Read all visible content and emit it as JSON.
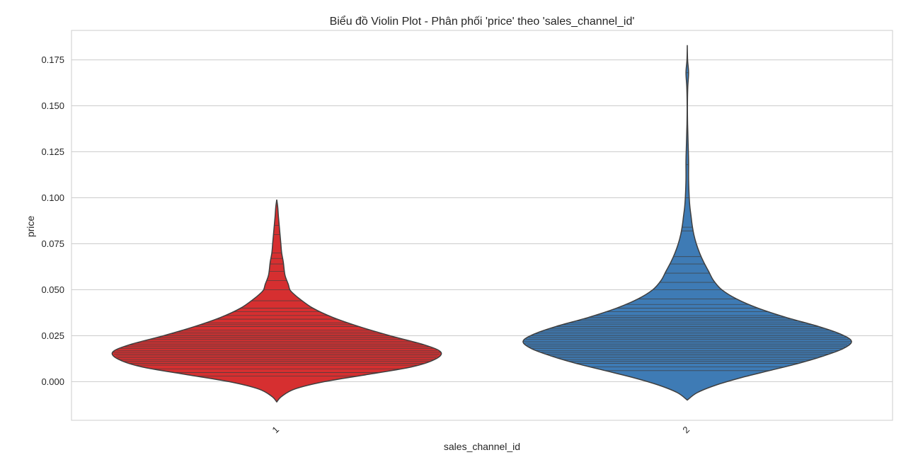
{
  "chart_data": {
    "type": "violin",
    "title": "Biểu đồ Violin Plot - Phân phối 'price' theo 'sales_channel_id'",
    "xlabel": "sales_channel_id",
    "ylabel": "price",
    "categories": [
      "1",
      "2"
    ],
    "ylim": [
      -0.021,
      0.191
    ],
    "yticks": [
      "0.000",
      "0.025",
      "0.050",
      "0.075",
      "0.100",
      "0.125",
      "0.150",
      "0.175"
    ],
    "grid": true,
    "inner": "stick",
    "violins": [
      {
        "category": "1",
        "color": "#d62f30",
        "range": [
          -0.011,
          0.099
        ],
        "density": [
          [
            -0.011,
            0.0
          ],
          [
            -0.008,
            0.03
          ],
          [
            -0.004,
            0.11
          ],
          [
            0.0,
            0.29
          ],
          [
            0.004,
            0.56
          ],
          [
            0.008,
            0.82
          ],
          [
            0.012,
            0.96
          ],
          [
            0.016,
            1.0
          ],
          [
            0.02,
            0.9
          ],
          [
            0.025,
            0.69
          ],
          [
            0.03,
            0.5
          ],
          [
            0.035,
            0.34
          ],
          [
            0.04,
            0.22
          ],
          [
            0.045,
            0.14
          ],
          [
            0.048,
            0.1
          ],
          [
            0.05,
            0.08
          ],
          [
            0.053,
            0.07
          ],
          [
            0.058,
            0.05
          ],
          [
            0.065,
            0.04
          ],
          [
            0.07,
            0.03
          ],
          [
            0.075,
            0.025
          ],
          [
            0.08,
            0.02
          ],
          [
            0.085,
            0.015
          ],
          [
            0.09,
            0.01
          ],
          [
            0.095,
            0.006
          ],
          [
            0.099,
            0.0
          ]
        ],
        "sticks": [
          0.003,
          0.005,
          0.007,
          0.009,
          0.01,
          0.011,
          0.012,
          0.013,
          0.014,
          0.015,
          0.016,
          0.017,
          0.018,
          0.019,
          0.02,
          0.021,
          0.022,
          0.023,
          0.024,
          0.025,
          0.026,
          0.027,
          0.028,
          0.03,
          0.031,
          0.032,
          0.034,
          0.036,
          0.038,
          0.04,
          0.044,
          0.05,
          0.055,
          0.06,
          0.064,
          0.067,
          0.07,
          0.08,
          0.085
        ]
      },
      {
        "category": "2",
        "color": "#3e7bb5",
        "range": [
          -0.01,
          0.183
        ],
        "density": [
          [
            -0.01,
            0.0
          ],
          [
            -0.006,
            0.06
          ],
          [
            -0.002,
            0.17
          ],
          [
            0.002,
            0.32
          ],
          [
            0.006,
            0.5
          ],
          [
            0.01,
            0.68
          ],
          [
            0.014,
            0.83
          ],
          [
            0.018,
            0.95
          ],
          [
            0.022,
            1.0
          ],
          [
            0.026,
            0.93
          ],
          [
            0.03,
            0.8
          ],
          [
            0.035,
            0.6
          ],
          [
            0.04,
            0.43
          ],
          [
            0.045,
            0.3
          ],
          [
            0.05,
            0.21
          ],
          [
            0.055,
            0.16
          ],
          [
            0.06,
            0.13
          ],
          [
            0.065,
            0.1
          ],
          [
            0.07,
            0.075
          ],
          [
            0.075,
            0.055
          ],
          [
            0.08,
            0.04
          ],
          [
            0.085,
            0.03
          ],
          [
            0.09,
            0.023
          ],
          [
            0.095,
            0.016
          ],
          [
            0.1,
            0.012
          ],
          [
            0.11,
            0.008
          ],
          [
            0.12,
            0.008
          ],
          [
            0.13,
            0.005
          ],
          [
            0.14,
            0.002
          ],
          [
            0.15,
            0.001
          ],
          [
            0.16,
            0.003
          ],
          [
            0.168,
            0.008
          ],
          [
            0.175,
            0.002
          ],
          [
            0.183,
            0.0
          ]
        ],
        "sticks": [
          0.006,
          0.008,
          0.01,
          0.011,
          0.012,
          0.013,
          0.014,
          0.015,
          0.016,
          0.017,
          0.018,
          0.019,
          0.02,
          0.021,
          0.022,
          0.023,
          0.024,
          0.025,
          0.026,
          0.027,
          0.028,
          0.029,
          0.03,
          0.031,
          0.032,
          0.033,
          0.034,
          0.035,
          0.036,
          0.038,
          0.04,
          0.042,
          0.045,
          0.05,
          0.054,
          0.059,
          0.064,
          0.068,
          0.082,
          0.084,
          0.1,
          0.118,
          0.168
        ]
      }
    ]
  }
}
